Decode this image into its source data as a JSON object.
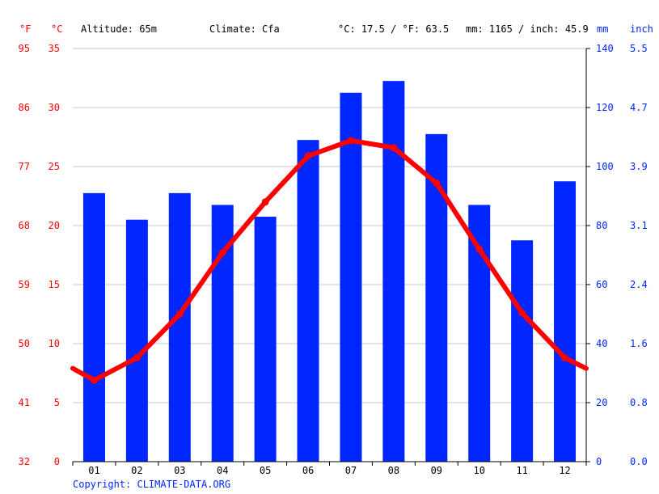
{
  "header": {
    "unit_f": "°F",
    "unit_c": "°C",
    "altitude": "Altitude: 65m",
    "climate": "Climate: Cfa",
    "temp_avg": "°C: 17.5 / °F: 63.5",
    "precip_total": "mm: 1165 / inch: 45.9",
    "unit_mm": "mm",
    "unit_inch": "inch"
  },
  "footer": {
    "copyright": "Copyright: CLIMATE-DATA.ORG"
  },
  "colors": {
    "temperature": "#ff0000",
    "precipitation": "#0026ff",
    "grid": "#c8c8c8"
  },
  "chart_data": {
    "type": "bar",
    "categories": [
      "01",
      "02",
      "03",
      "04",
      "05",
      "06",
      "07",
      "08",
      "09",
      "10",
      "11",
      "12"
    ],
    "series": [
      {
        "type": "bar",
        "axis": "right",
        "unit": "mm",
        "values": [
          91,
          82,
          91,
          87,
          83,
          109,
          125,
          129,
          111,
          87,
          75,
          95
        ]
      },
      {
        "type": "line",
        "axis": "left",
        "unit": "°C",
        "values": [
          6.9,
          8.8,
          12.5,
          17.7,
          22.0,
          25.9,
          27.2,
          26.6,
          23.6,
          18.0,
          12.6,
          8.8
        ]
      }
    ],
    "edge_temps": [
      7.9,
      7.9
    ],
    "left_axis": {
      "celsius_ticks": [
        "35",
        "30",
        "25",
        "20",
        "15",
        "10",
        "5",
        "0"
      ],
      "fahrenheit_ticks": [
        "95",
        "86",
        "77",
        "68",
        "59",
        "50",
        "41",
        "32"
      ],
      "ylim": [
        0,
        35
      ]
    },
    "right_axis": {
      "mm_ticks": [
        "140",
        "120",
        "100",
        "80",
        "60",
        "40",
        "20",
        "0"
      ],
      "inch_ticks": [
        "5.5",
        "4.7",
        "3.9",
        "3.1",
        "2.4",
        "1.6",
        "0.8",
        "0.0"
      ],
      "ylim": [
        0,
        140
      ]
    },
    "grid": true
  }
}
